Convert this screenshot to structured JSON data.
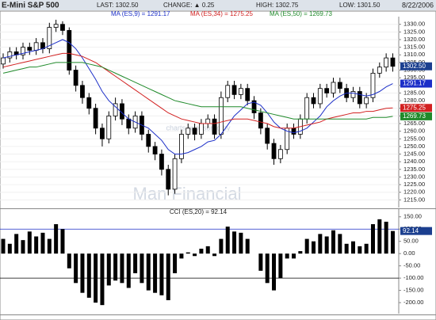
{
  "header": {
    "symbol": "E-Mini S&P 500",
    "last": "LAST: 1302.50",
    "change": "CHANGE: ▲ 0.25",
    "high": "HIGH: 1302.75",
    "low": "LOW: 1301.50",
    "date": "8/22/2006"
  },
  "watermark": [
    "charts sponsored by",
    "Man Financial"
  ],
  "chart_data": [
    {
      "type": "candlestick",
      "ylim": [
        1210,
        1334
      ],
      "yticks": [
        {
          "value": 1215,
          "label": "1215.00"
        },
        {
          "value": 1220,
          "label": "1220.00"
        },
        {
          "value": 1225,
          "label": "1225.00"
        },
        {
          "value": 1230,
          "label": "1230.00"
        },
        {
          "value": 1235,
          "label": "1235.00"
        },
        {
          "value": 1240,
          "label": "1240.00"
        },
        {
          "value": 1245,
          "label": "1245.00"
        },
        {
          "value": 1250,
          "label": "1250.00"
        },
        {
          "value": 1255,
          "label": "1255.00"
        },
        {
          "value": 1260,
          "label": "1260.00"
        },
        {
          "value": 1265,
          "label": "1265.00"
        },
        {
          "value": 1270,
          "label": "1270.00"
        },
        {
          "value": 1275,
          "label": "1275.00"
        },
        {
          "value": 1280,
          "label": "1280.00"
        },
        {
          "value": 1285,
          "label": "1285.00"
        },
        {
          "value": 1290,
          "label": "1290.00"
        },
        {
          "value": 1295,
          "label": "1295.00"
        },
        {
          "value": 1300,
          "label": "1300.00"
        },
        {
          "value": 1305,
          "label": "1305.00"
        },
        {
          "value": 1310,
          "label": "1310.00"
        },
        {
          "value": 1315,
          "label": "1315.00"
        },
        {
          "value": 1320,
          "label": "1320.00"
        },
        {
          "value": 1325,
          "label": "1325.00"
        },
        {
          "value": 1330,
          "label": "1330.00"
        }
      ],
      "grid": true,
      "color": "#000000",
      "last_label": "1302.50",
      "last_color": "#1b3f8f",
      "open": [
        1304,
        1308,
        1312,
        1310,
        1315,
        1313,
        1318,
        1314,
        1328,
        1330,
        1326,
        1300,
        1290,
        1282,
        1275,
        1262,
        1255,
        1270,
        1278,
        1268,
        1262,
        1270,
        1258,
        1250,
        1245,
        1235,
        1222,
        1242,
        1258,
        1262,
        1258,
        1265,
        1268,
        1258,
        1282,
        1290,
        1284,
        1288,
        1280,
        1272,
        1262,
        1252,
        1242,
        1248,
        1262,
        1258,
        1268,
        1282,
        1278,
        1288,
        1285,
        1292,
        1288,
        1282,
        1286,
        1278,
        1282,
        1298,
        1302,
        1308
      ],
      "high": [
        1311,
        1315,
        1315,
        1318,
        1318,
        1321,
        1321,
        1331,
        1333,
        1332,
        1328,
        1303,
        1293,
        1285,
        1278,
        1265,
        1273,
        1282,
        1281,
        1271,
        1273,
        1273,
        1261,
        1253,
        1248,
        1238,
        1245,
        1261,
        1265,
        1265,
        1268,
        1271,
        1271,
        1286,
        1293,
        1293,
        1291,
        1291,
        1283,
        1275,
        1265,
        1255,
        1251,
        1265,
        1265,
        1271,
        1285,
        1285,
        1291,
        1291,
        1295,
        1295,
        1291,
        1289,
        1289,
        1285,
        1301,
        1305,
        1311,
        1311
      ],
      "low": [
        1301,
        1305,
        1307,
        1307,
        1310,
        1310,
        1311,
        1311,
        1325,
        1323,
        1297,
        1286,
        1278,
        1271,
        1258,
        1250,
        1252,
        1267,
        1264,
        1258,
        1259,
        1254,
        1246,
        1241,
        1231,
        1218,
        1219,
        1239,
        1255,
        1254,
        1255,
        1262,
        1255,
        1255,
        1279,
        1281,
        1281,
        1277,
        1268,
        1258,
        1248,
        1238,
        1239,
        1245,
        1255,
        1255,
        1265,
        1275,
        1275,
        1282,
        1282,
        1285,
        1279,
        1279,
        1275,
        1275,
        1279,
        1295,
        1299,
        1299
      ],
      "close": [
        1308,
        1312,
        1310,
        1315,
        1313,
        1318,
        1314,
        1328,
        1330,
        1326,
        1300,
        1290,
        1282,
        1275,
        1262,
        1255,
        1270,
        1278,
        1268,
        1262,
        1270,
        1258,
        1250,
        1245,
        1235,
        1222,
        1242,
        1258,
        1262,
        1258,
        1265,
        1268,
        1258,
        1282,
        1290,
        1284,
        1288,
        1280,
        1272,
        1262,
        1252,
        1242,
        1248,
        1262,
        1258,
        1268,
        1282,
        1278,
        1288,
        1285,
        1292,
        1288,
        1282,
        1286,
        1278,
        1282,
        1298,
        1302,
        1308,
        1302.5
      ],
      "series": [
        {
          "name": "MA (ES,9) = 1291.17",
          "color": "#1c2fc8",
          "last_label": "1291.17",
          "values": [
            1308,
            1309,
            1310,
            1311,
            1312,
            1313,
            1314,
            1316,
            1318,
            1320,
            1318,
            1314,
            1308,
            1301,
            1294,
            1286,
            1280,
            1276,
            1272,
            1268,
            1266,
            1264,
            1262,
            1258,
            1254,
            1248,
            1245,
            1245,
            1246,
            1248,
            1250,
            1253,
            1254,
            1258,
            1264,
            1270,
            1274,
            1278,
            1279,
            1277,
            1272,
            1266,
            1262,
            1260,
            1259,
            1260,
            1262,
            1266,
            1270,
            1276,
            1280,
            1283,
            1285,
            1285,
            1284,
            1283,
            1284,
            1286,
            1289,
            1291.17
          ]
        },
        {
          "name": "MA (ES,34) = 1275.25",
          "color": "#d22020",
          "last_label": "1275.25",
          "values": [
            1302,
            1303,
            1304,
            1305,
            1306,
            1307,
            1308,
            1309,
            1310,
            1311,
            1311,
            1310,
            1309,
            1307,
            1305,
            1302,
            1299,
            1296,
            1293,
            1290,
            1287,
            1284,
            1281,
            1278,
            1275,
            1272,
            1270,
            1268,
            1267,
            1266,
            1265,
            1265,
            1265,
            1266,
            1267,
            1268,
            1268,
            1268,
            1267,
            1266,
            1265,
            1263,
            1262,
            1262,
            1262,
            1263,
            1264,
            1265,
            1266,
            1268,
            1269,
            1270,
            1271,
            1272,
            1272,
            1273,
            1273,
            1274,
            1275,
            1275.25
          ]
        },
        {
          "name": "MA (ES,50) = 1269.73",
          "color": "#1f8a2a",
          "last_label": "1269.73",
          "values": [
            1298,
            1299,
            1300,
            1301,
            1302,
            1302,
            1303,
            1304,
            1305,
            1305,
            1305,
            1305,
            1305,
            1304,
            1303,
            1302,
            1300,
            1298,
            1296,
            1294,
            1292,
            1290,
            1288,
            1286,
            1284,
            1282,
            1280,
            1279,
            1278,
            1277,
            1276,
            1276,
            1276,
            1276,
            1276,
            1276,
            1276,
            1275,
            1274,
            1273,
            1272,
            1271,
            1270,
            1269,
            1268,
            1268,
            1268,
            1268,
            1268,
            1268,
            1268,
            1268,
            1268,
            1268,
            1268,
            1268,
            1269,
            1269,
            1269,
            1269.73
          ]
        }
      ]
    },
    {
      "type": "bar",
      "title": "CCI (ES,20) = 92.14",
      "ylim": [
        -245,
        175
      ],
      "color": "#000000",
      "last_label": "92.14",
      "last_color": "#1b3f8f",
      "yticks": [
        {
          "value": 150,
          "label": "150.00"
        },
        {
          "value": 100,
          "label": "100.00"
        },
        {
          "value": 50,
          "label": "50.00"
        },
        {
          "value": 0,
          "label": "0.00"
        },
        {
          "value": -50,
          "label": "-50.00"
        },
        {
          "value": -100,
          "label": "-100.00"
        },
        {
          "value": -150,
          "label": "-150.00"
        },
        {
          "value": -200,
          "label": "-200.00"
        }
      ],
      "hlines": [
        100,
        -100
      ],
      "values": [
        60,
        40,
        80,
        55,
        90,
        70,
        85,
        60,
        120,
        100,
        -60,
        -120,
        -160,
        -180,
        -200,
        -210,
        -130,
        -110,
        -120,
        -140,
        -80,
        -120,
        -150,
        -160,
        -170,
        -190,
        -80,
        -20,
        5,
        -10,
        20,
        30,
        -10,
        60,
        110,
        90,
        85,
        60,
        0,
        -70,
        -120,
        -150,
        -100,
        -20,
        -20,
        10,
        60,
        50,
        80,
        70,
        95,
        80,
        40,
        50,
        30,
        40,
        120,
        140,
        130,
        92.14
      ]
    }
  ]
}
